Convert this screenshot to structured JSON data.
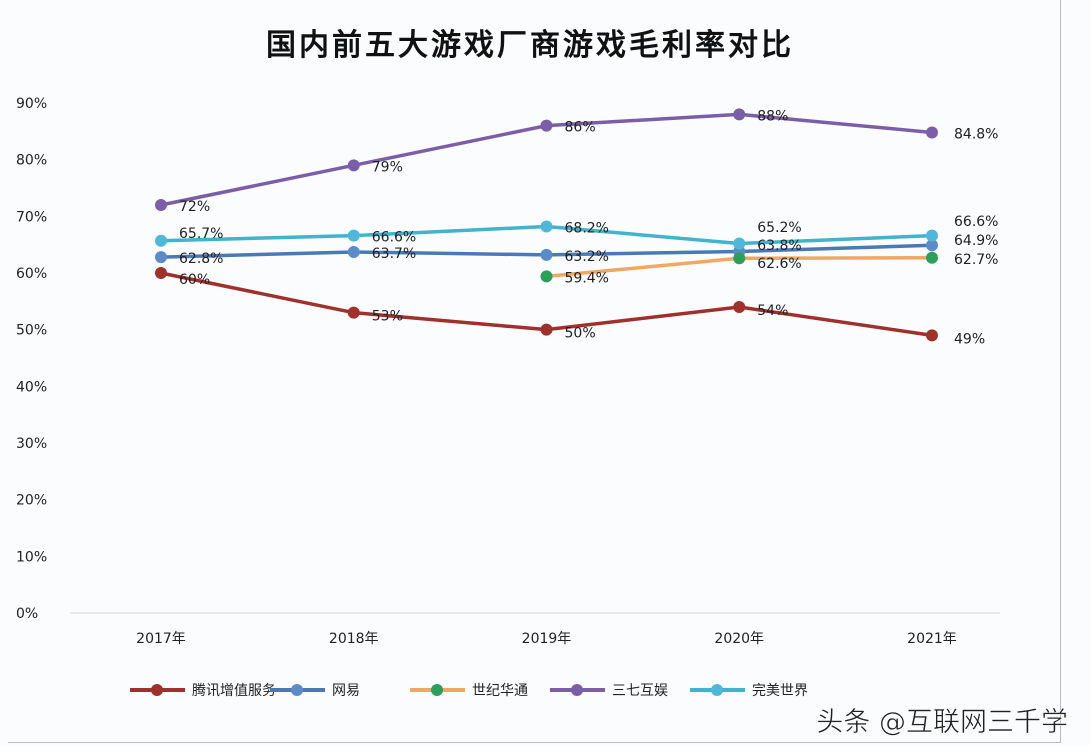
{
  "chart_data": {
    "type": "line",
    "title": "国内前五大游戏厂商游戏毛利率对比",
    "categories": [
      "2017年",
      "2018年",
      "2019年",
      "2020年",
      "2021年"
    ],
    "ylim": [
      0,
      90
    ],
    "yticks": [
      "0%",
      "10%",
      "20%",
      "30%",
      "40%",
      "50%",
      "60%",
      "70%",
      "80%",
      "90%"
    ],
    "grid": false,
    "legend_position": "bottom",
    "series": [
      {
        "name": "腾讯增值服务",
        "color": "#a0302c",
        "marker": "#a0302c",
        "values": [
          60,
          53,
          50,
          54,
          49
        ],
        "labels": [
          "60%",
          "53%",
          "50%",
          "54%",
          "49%"
        ]
      },
      {
        "name": "网易",
        "color": "#4a7ab5",
        "marker": "#5b8cc8",
        "values": [
          62.8,
          63.7,
          63.2,
          63.8,
          64.9
        ],
        "labels": [
          "62.8%",
          "63.7%",
          "63.2%",
          "63.8%",
          "64.9%"
        ]
      },
      {
        "name": "世纪华通",
        "color": "#f0a860",
        "marker": "#2aa05a",
        "values": [
          null,
          null,
          59.4,
          62.6,
          62.7
        ],
        "labels": [
          "",
          "",
          "59.4%",
          "62.6%",
          "62.7%"
        ]
      },
      {
        "name": "三七互娱",
        "color": "#7a5ea8",
        "marker": "#7a5ea8",
        "values": [
          72,
          79,
          86,
          88,
          84.8
        ],
        "labels": [
          "72%",
          "79%",
          "86%",
          "88%",
          "84.8%"
        ]
      },
      {
        "name": "完美世界",
        "color": "#3fb4cc",
        "marker": "#4fb8d8",
        "values": [
          65.7,
          66.6,
          68.2,
          65.2,
          66.6
        ],
        "labels": [
          "65.7%",
          "66.6%",
          "68.2%",
          "65.2%",
          "66.6%"
        ]
      }
    ]
  },
  "watermark": "头条 @互联网三千学"
}
